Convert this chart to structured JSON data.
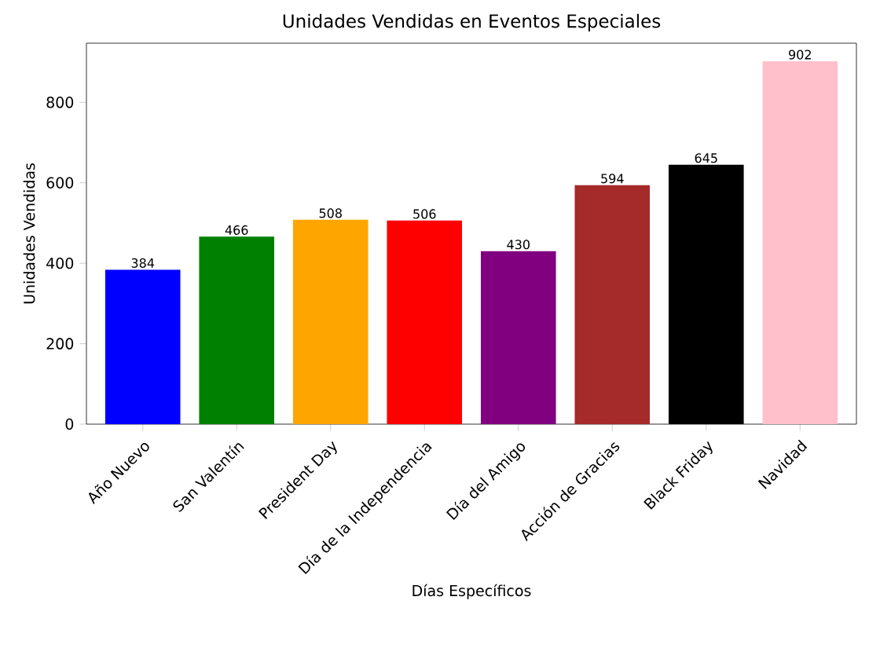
{
  "chart_data": {
    "type": "bar",
    "title": "Unidades Vendidas en Eventos Especiales",
    "xlabel": "Días Específicos",
    "ylabel": "Unidades Vendidas",
    "categories": [
      "Año Nuevo",
      "San Valentín",
      "President Day",
      "Día de la Independencia",
      "Día del Amigo",
      "Acción de Gracias",
      "Black Friday",
      "Navidad"
    ],
    "values": [
      384,
      466,
      508,
      506,
      430,
      594,
      645,
      902
    ],
    "colors": [
      "#0000ff",
      "#008000",
      "#ffa500",
      "#ff0000",
      "#800080",
      "#a52a2a",
      "#000000",
      "#ffc0cb"
    ],
    "ylim": [
      0,
      947
    ],
    "yticks": [
      0,
      200,
      400,
      600,
      800
    ],
    "data_labels": true
  }
}
